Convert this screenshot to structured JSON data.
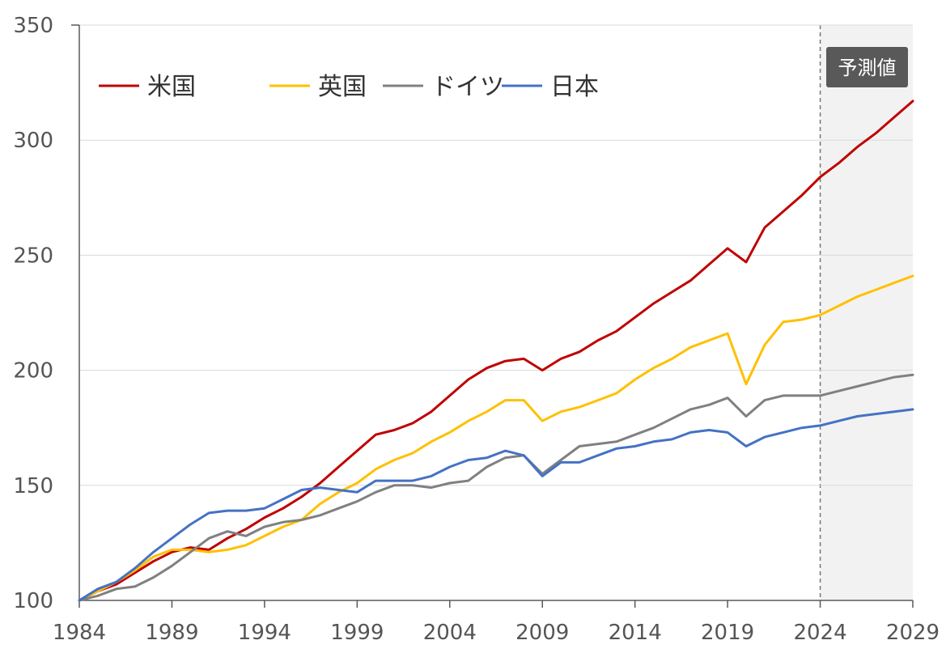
{
  "chart_data": {
    "type": "line",
    "title": "",
    "xlabel": "",
    "ylabel": "",
    "xlim": [
      1984,
      2029
    ],
    "ylim": [
      100,
      350
    ],
    "x_ticks": [
      "1984",
      "1989",
      "1994",
      "1999",
      "2004",
      "2009",
      "2014",
      "2019",
      "2024",
      "2029"
    ],
    "y_ticks": [
      "100",
      "150",
      "200",
      "250",
      "300",
      "350"
    ],
    "grid": "horizontal",
    "legend_position": "top-left",
    "forecast": {
      "label": "予測値",
      "start": 2024,
      "end": 2029
    },
    "x": [
      1984,
      1985,
      1986,
      1987,
      1988,
      1989,
      1990,
      1991,
      1992,
      1993,
      1994,
      1995,
      1996,
      1997,
      1998,
      1999,
      2000,
      2001,
      2002,
      2003,
      2004,
      2005,
      2006,
      2007,
      2008,
      2009,
      2010,
      2011,
      2012,
      2013,
      2014,
      2015,
      2016,
      2017,
      2018,
      2019,
      2020,
      2021,
      2022,
      2023,
      2024,
      2025,
      2026,
      2027,
      2028,
      2029
    ],
    "series": [
      {
        "name": "米国",
        "color": "#c00000",
        "values": [
          100,
          104,
          107,
          112,
          117,
          121,
          123,
          122,
          127,
          131,
          136,
          140,
          145,
          151,
          158,
          165,
          172,
          174,
          177,
          182,
          189,
          196,
          201,
          204,
          205,
          200,
          205,
          208,
          213,
          217,
          223,
          229,
          234,
          239,
          246,
          253,
          247,
          262,
          269,
          276,
          284,
          290,
          297,
          303,
          310,
          317
        ]
      },
      {
        "name": "英国",
        "color": "#ffc000",
        "values": [
          100,
          104,
          108,
          113,
          119,
          122,
          122,
          121,
          122,
          124,
          128,
          132,
          135,
          142,
          147,
          151,
          157,
          161,
          164,
          169,
          173,
          178,
          182,
          187,
          187,
          178,
          182,
          184,
          187,
          190,
          196,
          201,
          205,
          210,
          213,
          216,
          194,
          211,
          221,
          222,
          224,
          228,
          232,
          235,
          238,
          241
        ]
      },
      {
        "name": "ドイツ",
        "color": "#808080",
        "values": [
          100,
          102,
          105,
          106,
          110,
          115,
          121,
          127,
          130,
          128,
          132,
          134,
          135,
          137,
          140,
          143,
          147,
          150,
          150,
          149,
          151,
          152,
          158,
          162,
          163,
          155,
          161,
          167,
          168,
          169,
          172,
          175,
          179,
          183,
          185,
          188,
          180,
          187,
          189,
          189,
          189,
          191,
          193,
          195,
          197,
          198
        ]
      },
      {
        "name": "日本",
        "color": "#4472c4",
        "values": [
          100,
          105,
          108,
          114,
          121,
          127,
          133,
          138,
          139,
          139,
          140,
          144,
          148,
          149,
          148,
          147,
          152,
          152,
          152,
          154,
          158,
          161,
          162,
          165,
          163,
          154,
          160,
          160,
          163,
          166,
          167,
          169,
          170,
          173,
          174,
          173,
          167,
          171,
          173,
          175,
          176,
          178,
          180,
          181,
          182,
          183
        ]
      }
    ]
  }
}
